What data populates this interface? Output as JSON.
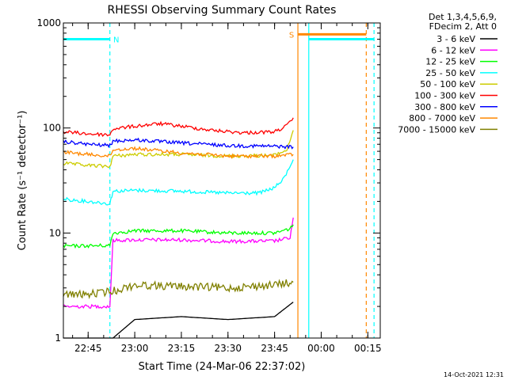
{
  "chart_data": {
    "type": "line",
    "title": "RHESSI Observing Summary Count Rates",
    "xlabel": "Start Time (24-Mar-06 22:37:02)",
    "ylabel": "Count Rate (s⁻¹ detector⁻¹)",
    "y_scale": "log",
    "ylim": [
      1,
      1000
    ],
    "xlim": [
      "22:37:02",
      "00:19:00"
    ],
    "y_ticks": [
      "1",
      "10",
      "100",
      "1000"
    ],
    "x_ticks": [
      "22:45",
      "23:00",
      "23:15",
      "23:30",
      "23:45",
      "00:00",
      "00:15"
    ],
    "legend_header": [
      "Det 1,3,4,5,6,9,",
      "FDecim 2, Att 0"
    ],
    "legend_position": "right",
    "timestamp": "14-Oct-2021 12:31",
    "series": [
      {
        "name": "3 - 6 keV",
        "color": "#000000",
        "x": [
          "22:37",
          "22:53",
          "23:00",
          "23:15",
          "23:30",
          "23:45",
          "23:51"
        ],
        "values": [
          1.0,
          1.0,
          1.5,
          1.6,
          1.5,
          1.6,
          2.2
        ]
      },
      {
        "name": "6 - 12 keV",
        "color": "#ff00ff",
        "x": [
          "22:37",
          "22:40",
          "22:52",
          "22:53",
          "23:00",
          "23:15",
          "23:30",
          "23:45",
          "23:50",
          "23:51"
        ],
        "values": [
          2.0,
          2.0,
          2.0,
          8.5,
          8.6,
          8.6,
          8.3,
          8.4,
          9.0,
          14
        ]
      },
      {
        "name": "12 - 25 keV",
        "color": "#00ff00",
        "x": [
          "22:37",
          "22:52",
          "22:53",
          "23:00",
          "23:15",
          "23:30",
          "23:45",
          "23:50",
          "23:51"
        ],
        "values": [
          7.5,
          7.6,
          10.0,
          10.5,
          10.5,
          10.0,
          10.0,
          11.0,
          12.0
        ]
      },
      {
        "name": "25 - 50 keV",
        "color": "#00ffff",
        "x": [
          "22:37",
          "22:45",
          "22:52",
          "22:53",
          "23:00",
          "23:15",
          "23:30",
          "23:40",
          "23:45",
          "23:48",
          "23:51"
        ],
        "values": [
          21,
          20,
          19,
          25,
          25.5,
          25,
          24,
          24,
          27,
          33,
          50
        ]
      },
      {
        "name": "50 - 100 keV",
        "color": "#cccc00",
        "x": [
          "22:37",
          "22:45",
          "22:52",
          "22:53",
          "23:00",
          "23:15",
          "23:30",
          "23:45",
          "23:49",
          "23:51"
        ],
        "values": [
          46,
          44,
          43,
          54,
          56,
          56,
          54,
          55,
          62,
          95
        ]
      },
      {
        "name": "100 - 300 keV",
        "color": "#ff0000",
        "x": [
          "22:37",
          "22:45",
          "22:52",
          "22:53",
          "23:00",
          "23:08",
          "23:15",
          "23:25",
          "23:35",
          "23:45",
          "23:49",
          "23:51"
        ],
        "values": [
          92,
          88,
          86,
          98,
          104,
          110,
          104,
          95,
          90,
          92,
          105,
          125
        ]
      },
      {
        "name": "300 - 800 keV",
        "color": "#0000ff",
        "x": [
          "22:37",
          "22:45",
          "22:52",
          "22:53",
          "23:00",
          "23:15",
          "23:30",
          "23:45",
          "23:51"
        ],
        "values": [
          74,
          70,
          68,
          75,
          77,
          72,
          68,
          67,
          66
        ]
      },
      {
        "name": "800 - 7000 keV",
        "color": "#ff8800",
        "x": [
          "22:37",
          "22:45",
          "22:52",
          "22:53",
          "23:00",
          "23:15",
          "23:30",
          "23:45",
          "23:51"
        ],
        "values": [
          59,
          56,
          54,
          62,
          64,
          58,
          54,
          54,
          56
        ]
      },
      {
        "name": "7000 - 15000 keV",
        "color": "#808000",
        "x": [
          "22:37",
          "22:45",
          "22:53",
          "23:00",
          "23:15",
          "23:30",
          "23:45",
          "23:51"
        ],
        "values": [
          2.6,
          2.6,
          2.8,
          3.2,
          3.1,
          3.0,
          3.2,
          3.4
        ]
      }
    ],
    "annotations": [
      {
        "label": "N",
        "color": "#00ffff",
        "start": "22:37:02",
        "end": "22:52:00",
        "level": 700
      },
      {
        "label": "S",
        "color": "#ff8800",
        "start": "23:52:30",
        "end": "00:14:30",
        "level": 780
      },
      {
        "label": "",
        "color": "#00ffff",
        "start": "23:56:00",
        "end": "00:17:00",
        "level": 700
      }
    ],
    "markers": [
      {
        "time": "22:52:00",
        "color": "#00ffff",
        "style": "dashed"
      },
      {
        "time": "23:52:30",
        "color": "#ff8800",
        "style": "solid"
      },
      {
        "time": "23:56:00",
        "color": "#00ffff",
        "style": "solid"
      },
      {
        "time": "00:14:30",
        "color": "#ff8800",
        "style": "dashed"
      },
      {
        "time": "00:17:00",
        "color": "#00ffff",
        "style": "dashed"
      }
    ]
  }
}
